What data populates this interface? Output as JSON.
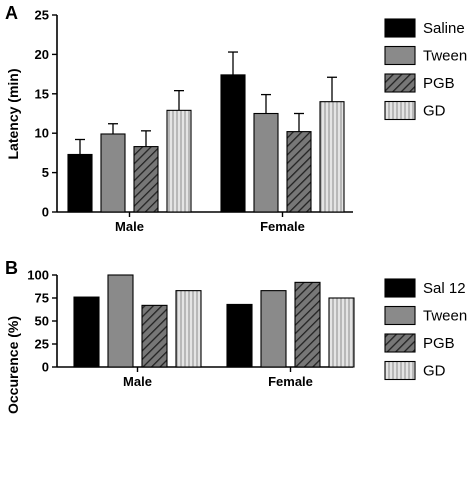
{
  "colors": {
    "black": "#000000",
    "gray": "#8a8a8a",
    "hatch_bg": "#7a7a7a",
    "vstripe_bg": "#e2e2e2"
  },
  "chart_data": [
    {
      "type": "bar",
      "panel": "A",
      "title": "",
      "xlabel": "",
      "ylabel": "Latency (min)",
      "ylim": [
        0,
        25
      ],
      "yticks": [
        0,
        5,
        10,
        15,
        20,
        25
      ],
      "categories": [
        "Male",
        "Female"
      ],
      "legend": "right",
      "series": [
        {
          "name": "Saline",
          "pattern": "solid-black",
          "values": [
            7.3,
            17.4
          ],
          "errors": [
            1.9,
            2.9
          ]
        },
        {
          "name": "Tween",
          "pattern": "solid-gray",
          "values": [
            9.9,
            12.5
          ],
          "errors": [
            1.3,
            2.4
          ]
        },
        {
          "name": "PGB",
          "pattern": "diagonal-hatch",
          "values": [
            8.3,
            10.2
          ],
          "errors": [
            2.0,
            2.3
          ]
        },
        {
          "name": "GD",
          "pattern": "vertical-stripes",
          "values": [
            12.9,
            14.0
          ],
          "errors": [
            2.5,
            3.1
          ]
        }
      ]
    },
    {
      "type": "bar",
      "panel": "B",
      "title": "",
      "xlabel": "",
      "ylabel": "Occurence (%)",
      "ylim": [
        0,
        100
      ],
      "yticks": [
        0,
        25,
        50,
        75,
        100
      ],
      "categories": [
        "Male",
        "Female"
      ],
      "legend": "right",
      "series": [
        {
          "name": "Sal 12",
          "pattern": "solid-black",
          "values": [
            76,
            68
          ]
        },
        {
          "name": "Tween",
          "pattern": "solid-gray",
          "values": [
            100,
            83
          ]
        },
        {
          "name": "PGB",
          "pattern": "diagonal-hatch",
          "values": [
            67,
            92
          ]
        },
        {
          "name": "GD",
          "pattern": "vertical-stripes",
          "values": [
            83,
            75
          ]
        }
      ]
    }
  ]
}
